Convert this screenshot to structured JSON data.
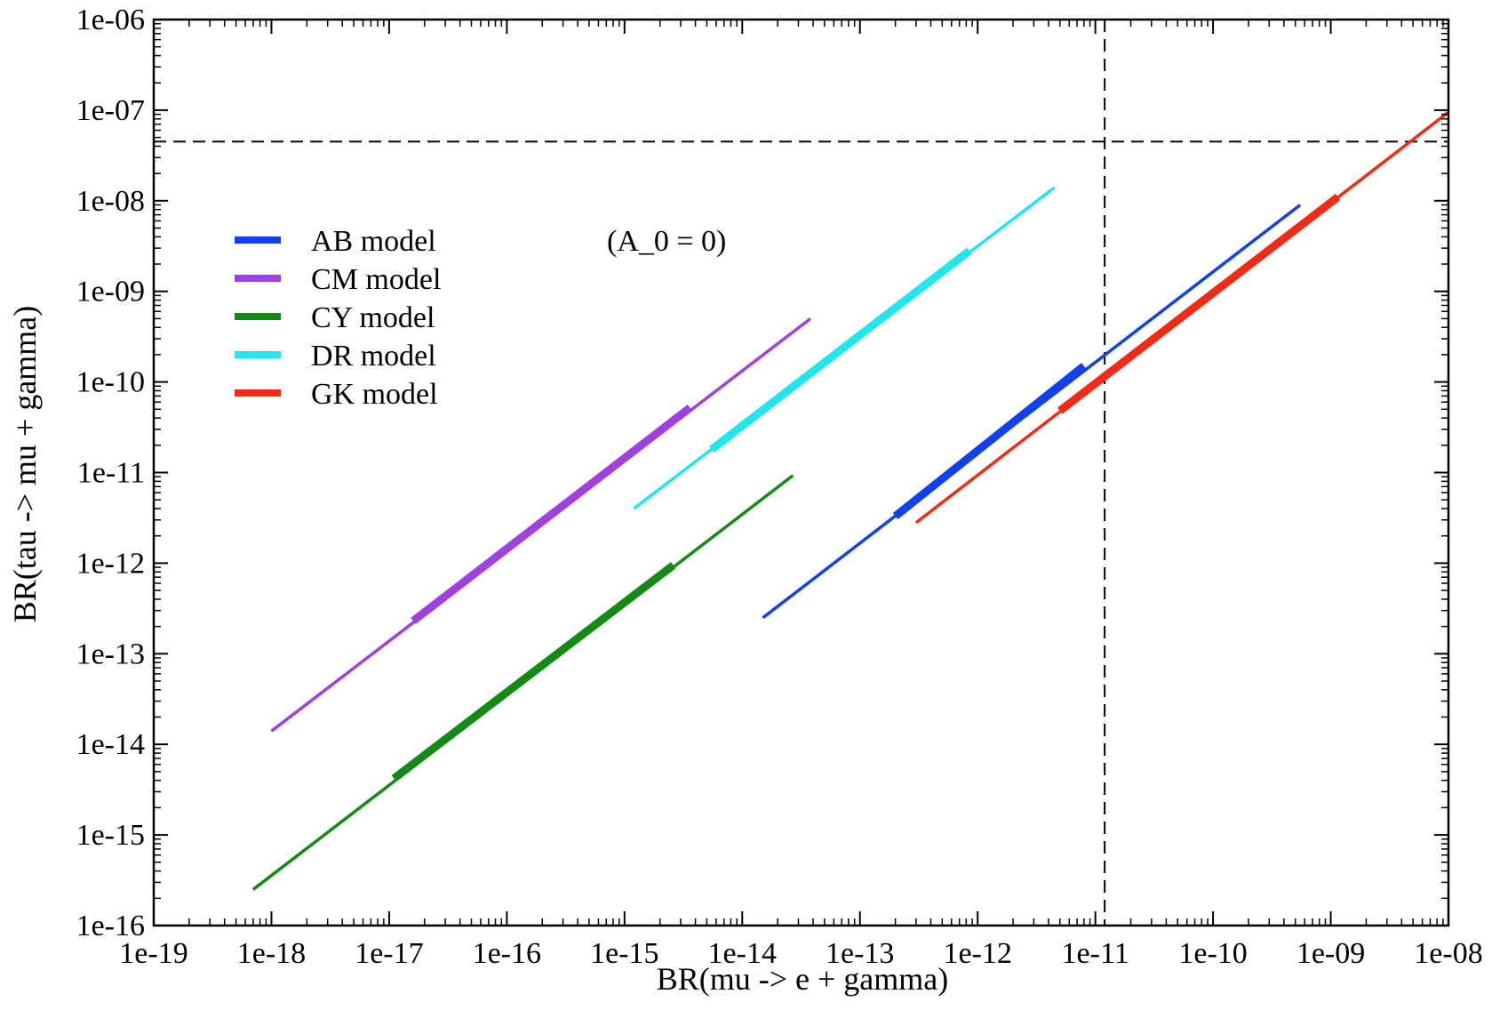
{
  "chart_data": {
    "type": "line",
    "title": "",
    "xlabel": "BR(mu -> e + gamma)",
    "ylabel": "BR(tau -> mu + gamma)",
    "xscale": "log",
    "yscale": "log",
    "xlim": [
      1e-19,
      1e-08
    ],
    "ylim": [
      1e-16,
      1e-06
    ],
    "x_tick_labels": [
      "1e-19",
      "1e-18",
      "1e-17",
      "1e-16",
      "1e-15",
      "1e-14",
      "1e-13",
      "1e-12",
      "1e-11",
      "1e-10",
      "1e-09",
      "1e-08"
    ],
    "y_tick_labels": [
      "1e-16",
      "1e-15",
      "1e-14",
      "1e-13",
      "1e-12",
      "1e-11",
      "1e-10",
      "1e-09",
      "1e-08",
      "1e-07",
      "1e-06"
    ],
    "grid": false,
    "legend_position": "upper-left",
    "annotation": "(A_0 = 0)",
    "reference_lines": [
      {
        "orientation": "horizontal",
        "value": 4.5e-08,
        "style": "dashed"
      },
      {
        "orientation": "vertical",
        "value": 1.2e-11,
        "style": "dashed"
      }
    ],
    "series": [
      {
        "name": "AB model",
        "color": "#1040f0",
        "x_range": [
          1.5e-14,
          5.5e-10
        ],
        "y_range": [
          2.5e-13,
          9e-09
        ],
        "thick_x_range": [
          2e-13,
          8e-12
        ],
        "thick_y_range": [
          3.3e-12,
          1.5e-10
        ]
      },
      {
        "name": "CM model",
        "color": "#a040e0",
        "x_range": [
          1e-18,
          3.8e-14
        ],
        "y_range": [
          1.4e-14,
          5e-10
        ],
        "thick_x_range": [
          1.6e-17,
          3.6e-15
        ],
        "thick_y_range": [
          2.3e-13,
          5.2e-11
        ]
      },
      {
        "name": "CY model",
        "color": "#138a13",
        "x_range": [
          7e-19,
          2.7e-14
        ],
        "y_range": [
          2.5e-16,
          9.3e-12
        ],
        "thick_x_range": [
          1.1e-17,
          2.6e-15
        ],
        "thick_y_range": [
          4.2e-15,
          9.5e-13
        ]
      },
      {
        "name": "DR model",
        "color": "#20e6f0",
        "x_range": [
          1.2e-15,
          4.5e-12
        ],
        "y_range": [
          4e-12,
          1.4e-08
        ],
        "thick_x_range": [
          5.5e-15,
          8.5e-13
        ],
        "thick_y_range": [
          1.8e-11,
          2.8e-09
        ]
      },
      {
        "name": "GK model",
        "color": "#f42a14",
        "x_range": [
          3e-13,
          1e-08
        ],
        "y_range": [
          2.8e-12,
          9.5e-08
        ],
        "thick_x_range": [
          5e-12,
          1.15e-09
        ],
        "thick_y_range": [
          4.8e-11,
          1.1e-08
        ]
      }
    ]
  }
}
